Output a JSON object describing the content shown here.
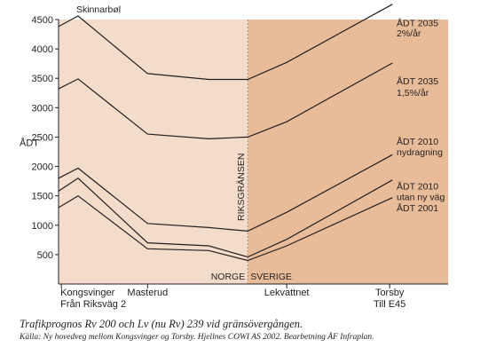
{
  "caption": "Trafikprognos Rv 200 och Lv (nu Rv) 239 vid gränsövergången.",
  "source": "Källa: Ny hovedveg mellom Kongsvinger og Torsby. Hjellnes COWI AS 2002. Bearbetning ÅF Infraplan.",
  "colors": {
    "norway_bg": "#f4dccb",
    "sweden_bg": "#e8bc99",
    "line": "#231f20"
  },
  "chart_data": {
    "type": "line",
    "title": "",
    "xlabel": "",
    "ylabel": "ÅDT",
    "ylim": [
      0,
      4500
    ],
    "yticks": [
      500,
      1000,
      1500,
      2000,
      2500,
      3000,
      3500,
      4000,
      4500
    ],
    "grid": false,
    "x": [
      0,
      1,
      2,
      3,
      4,
      5,
      6
    ],
    "xlim": [
      0,
      7
    ],
    "x_ticks": [
      {
        "x": 0.05,
        "label": "Kongsvinger",
        "label2": "Från Riksväg 2"
      },
      {
        "x": 1.6,
        "label": "Masterud",
        "label2": ""
      },
      {
        "x": 4.1,
        "label": "Lekvattnet",
        "label2": ""
      },
      {
        "x": 5.95,
        "label": "Torsby",
        "label2": "Till E45"
      }
    ],
    "border_x": 3.4,
    "border_label": "RIKSGRÄNSEN",
    "side_left": "NORGE",
    "side_right": "SVERIGE",
    "top_annotation": "Skinnarbøl",
    "series": [
      {
        "name": "ÅDT 2035 2%/år",
        "label_lines": [
          "ÅDT 2035",
          "2%/år"
        ],
        "points": [
          [
            0,
            4380
          ],
          [
            0.35,
            4560
          ],
          [
            1.6,
            3580
          ],
          [
            2.7,
            3480
          ],
          [
            3.4,
            3480
          ],
          [
            4.1,
            3770
          ],
          [
            6.0,
            4760
          ]
        ]
      },
      {
        "name": "ÅDT 2035 1,5%/år",
        "label_lines": [
          "ÅDT 2035",
          "1,5%/år"
        ],
        "points": [
          [
            0,
            3320
          ],
          [
            0.35,
            3490
          ],
          [
            1.6,
            2550
          ],
          [
            2.7,
            2470
          ],
          [
            3.4,
            2500
          ],
          [
            4.1,
            2760
          ],
          [
            6.0,
            3760
          ]
        ]
      },
      {
        "name": "ÅDT 2010 nydragning",
        "label_lines": [
          "ÅDT 2010",
          "nydragning"
        ],
        "points": [
          [
            0,
            1800
          ],
          [
            0.35,
            1970
          ],
          [
            1.6,
            1030
          ],
          [
            2.7,
            960
          ],
          [
            3.4,
            900
          ],
          [
            4.1,
            1220
          ],
          [
            6.0,
            2200
          ]
        ]
      },
      {
        "name": "ÅDT 2010 utan ny väg",
        "label_lines": [
          "ÅDT 2010",
          "utan ny väg"
        ],
        "points": [
          [
            0,
            1580
          ],
          [
            0.35,
            1800
          ],
          [
            1.6,
            700
          ],
          [
            2.7,
            650
          ],
          [
            3.4,
            460
          ],
          [
            4.1,
            760
          ],
          [
            6.0,
            1770
          ]
        ]
      },
      {
        "name": "ÅDT 2001",
        "label_lines": [
          "ÅDT 2001"
        ],
        "points": [
          [
            0,
            1300
          ],
          [
            0.35,
            1500
          ],
          [
            1.6,
            600
          ],
          [
            2.7,
            570
          ],
          [
            3.4,
            400
          ],
          [
            4.1,
            650
          ],
          [
            6.0,
            1470
          ]
        ]
      }
    ]
  }
}
